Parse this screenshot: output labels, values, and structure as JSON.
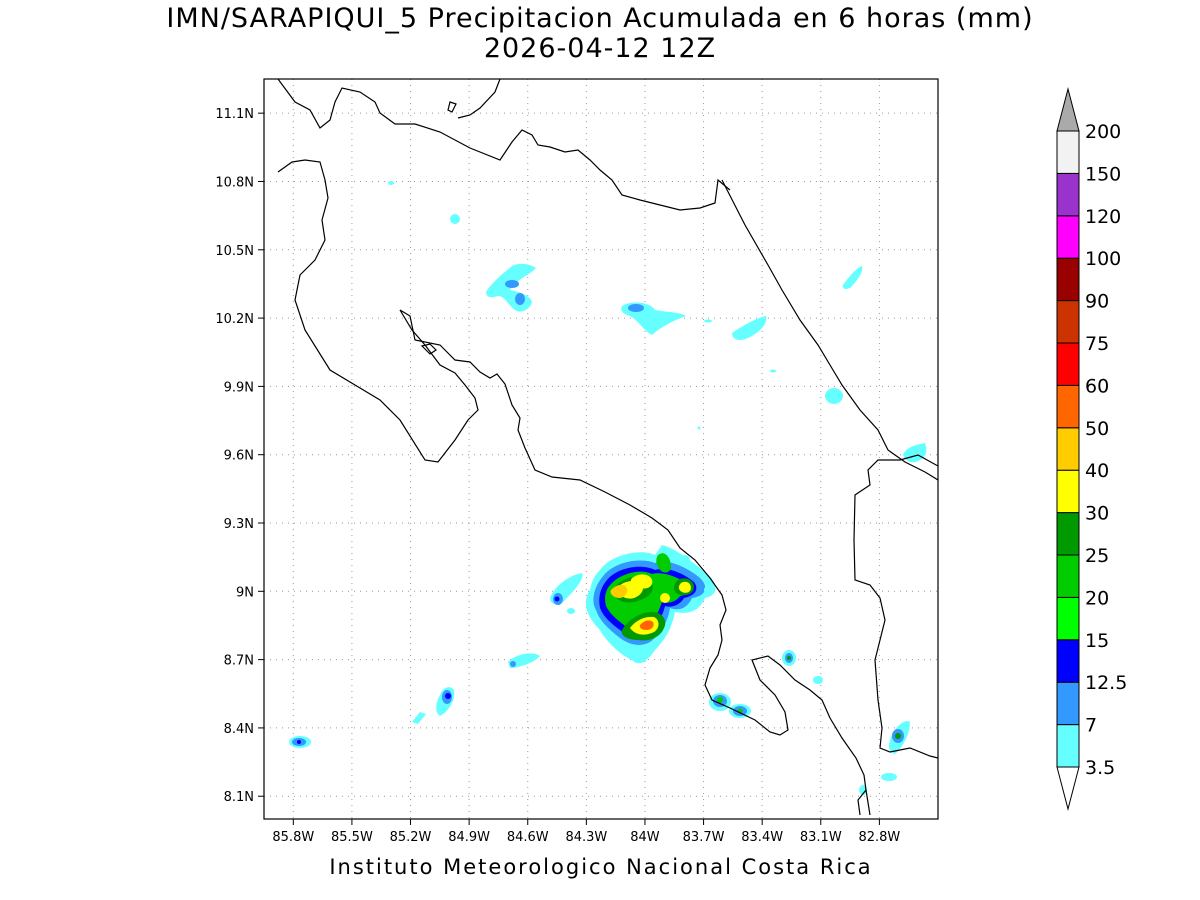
{
  "title": {
    "line1": "IMN/SARAPIQUI_5 Precipitacion Acumulada en 6 horas (mm)",
    "line2": "2026-04-12 12Z"
  },
  "footer": "Instituto Meteorologico Nacional Costa Rica",
  "map": {
    "lon_range": [
      -85.95,
      -82.5
    ],
    "lat_range": [
      8.0,
      11.25
    ],
    "lat_labels": [
      "11.1N",
      "10.8N",
      "10.5N",
      "10.2N",
      "9.9N",
      "9.6N",
      "9.3N",
      "9N",
      "8.7N",
      "8.4N",
      "8.1N"
    ],
    "lon_labels": [
      "85.8W",
      "85.5W",
      "85.2W",
      "84.9W",
      "84.6W",
      "84.3W",
      "84W",
      "83.7W",
      "83.4W",
      "83.1W",
      "82.8W"
    ],
    "gridlines": "dotted"
  },
  "colorbar": {
    "levels": [
      "3.5",
      "7",
      "12.5",
      "15",
      "20",
      "25",
      "30",
      "40",
      "50",
      "60",
      "75",
      "90",
      "100",
      "120",
      "150",
      "200"
    ],
    "colors": [
      "#ffffff",
      "#66ffff",
      "#3399ff",
      "#0000ff",
      "#00ff00",
      "#00cc00",
      "#009900",
      "#ffff00",
      "#ffcc00",
      "#ff6600",
      "#ff0000",
      "#cc3300",
      "#990000",
      "#ff00ff",
      "#9933cc",
      "#f2f2f2",
      "#aaaaaa"
    ]
  }
}
